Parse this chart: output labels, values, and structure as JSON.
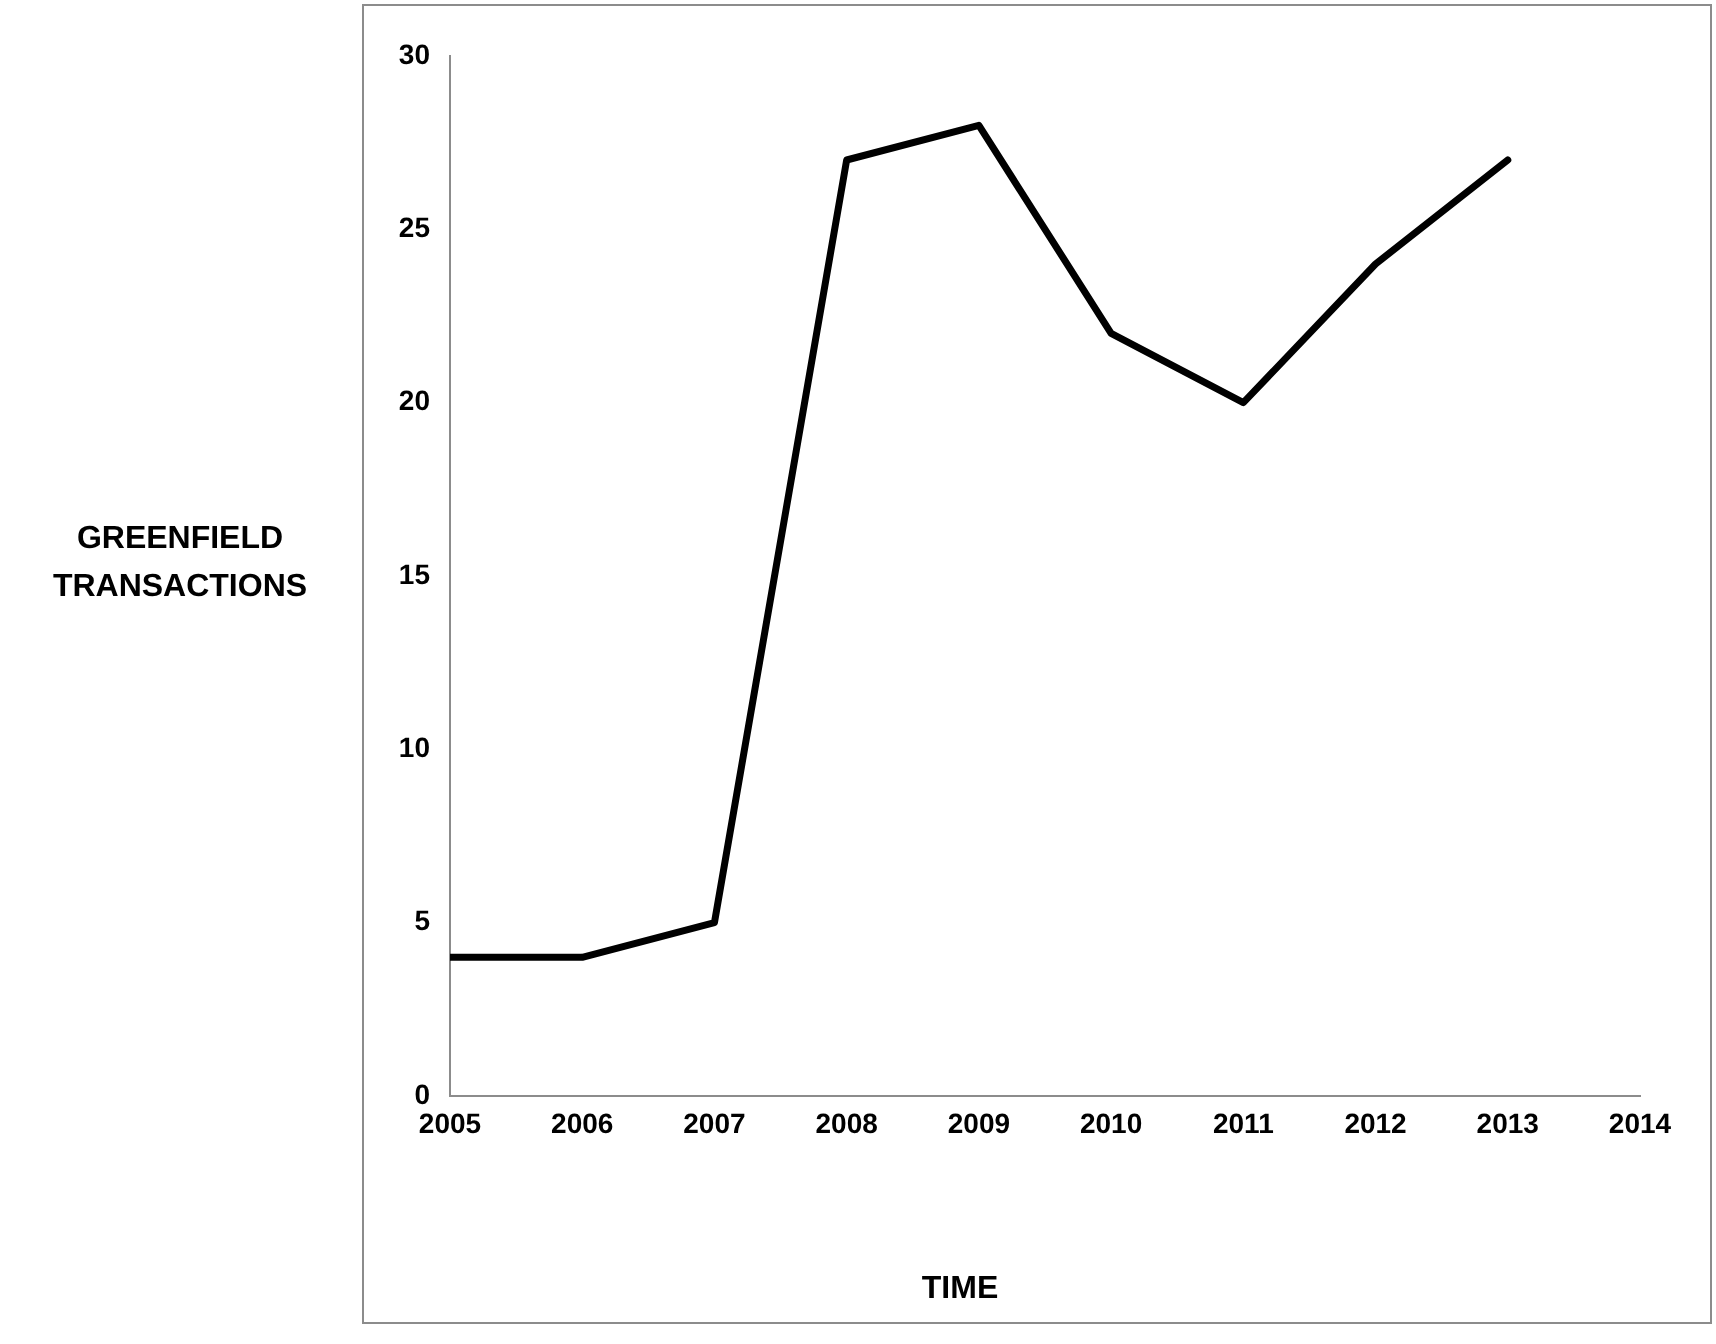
{
  "chart_data": {
    "type": "line",
    "xlabel": "TIME",
    "ylabel": "GREENFIELD TRANSACTIONS",
    "x": [
      2005,
      2006,
      2007,
      2008,
      2009,
      2010,
      2011,
      2012,
      2013
    ],
    "series": [
      {
        "color": "#000000",
        "values": [
          4,
          4,
          5,
          27,
          28,
          22,
          20,
          24,
          27
        ]
      }
    ],
    "xlim": [
      2005,
      2014
    ],
    "xticks": [
      2005,
      2006,
      2007,
      2008,
      2009,
      2010,
      2011,
      2012,
      2013,
      2014
    ],
    "ylim": [
      0,
      30
    ],
    "yticks": [
      0,
      5,
      10,
      15,
      20,
      25,
      30
    ],
    "grid": false,
    "legend": false,
    "marker": "none",
    "line_style": "solid"
  }
}
